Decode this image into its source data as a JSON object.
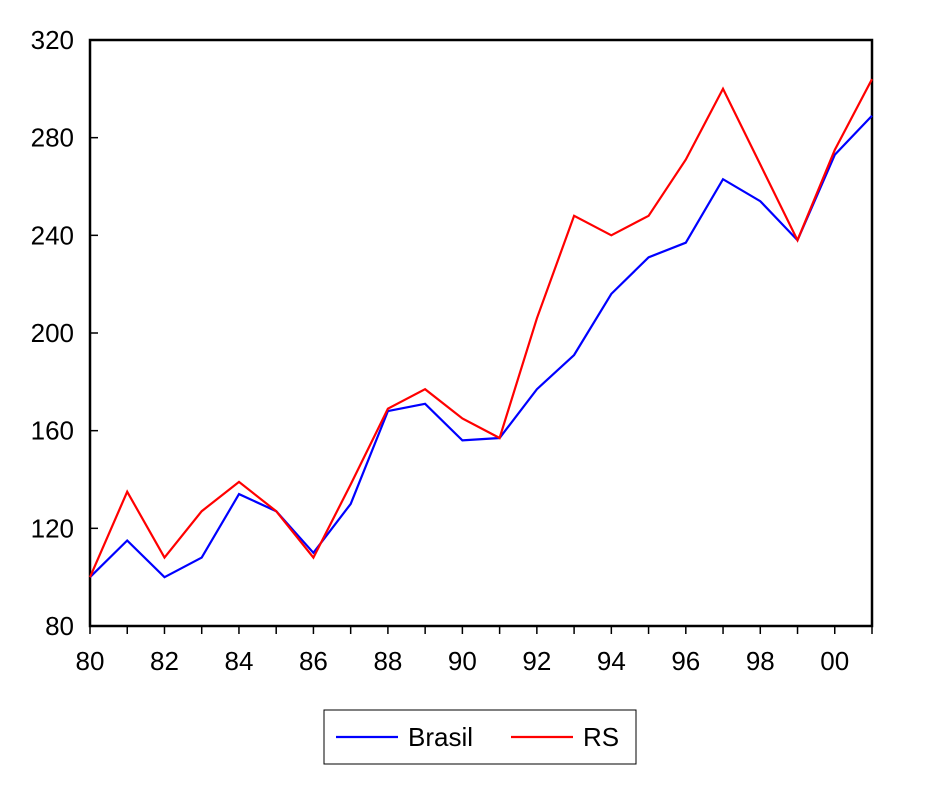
{
  "chart_data": {
    "type": "line",
    "x": [
      "80",
      "81",
      "82",
      "83",
      "84",
      "85",
      "86",
      "87",
      "88",
      "89",
      "90",
      "91",
      "92",
      "93",
      "94",
      "95",
      "96",
      "97",
      "98",
      "99",
      "00",
      "01"
    ],
    "x_tick_labels": [
      "80",
      "82",
      "84",
      "86",
      "88",
      "90",
      "92",
      "94",
      "96",
      "98",
      "00"
    ],
    "y_tick_labels": [
      "80",
      "120",
      "160",
      "200",
      "240",
      "280",
      "320"
    ],
    "ylim": [
      80,
      320
    ],
    "grid": false,
    "legend_position": "bottom-center",
    "series": [
      {
        "name": "Brasil",
        "color": "#0000ff",
        "values": [
          100,
          115,
          100,
          108,
          134,
          127,
          110,
          130,
          168,
          171,
          156,
          157,
          177,
          191,
          216,
          231,
          237,
          263,
          254,
          238,
          273,
          289
        ]
      },
      {
        "name": "RS",
        "color": "#ff0000",
        "values": [
          100,
          135,
          108,
          127,
          139,
          127,
          108,
          138,
          169,
          177,
          165,
          157,
          206,
          248,
          240,
          248,
          271,
          300,
          269,
          238,
          275,
          304
        ]
      }
    ]
  }
}
